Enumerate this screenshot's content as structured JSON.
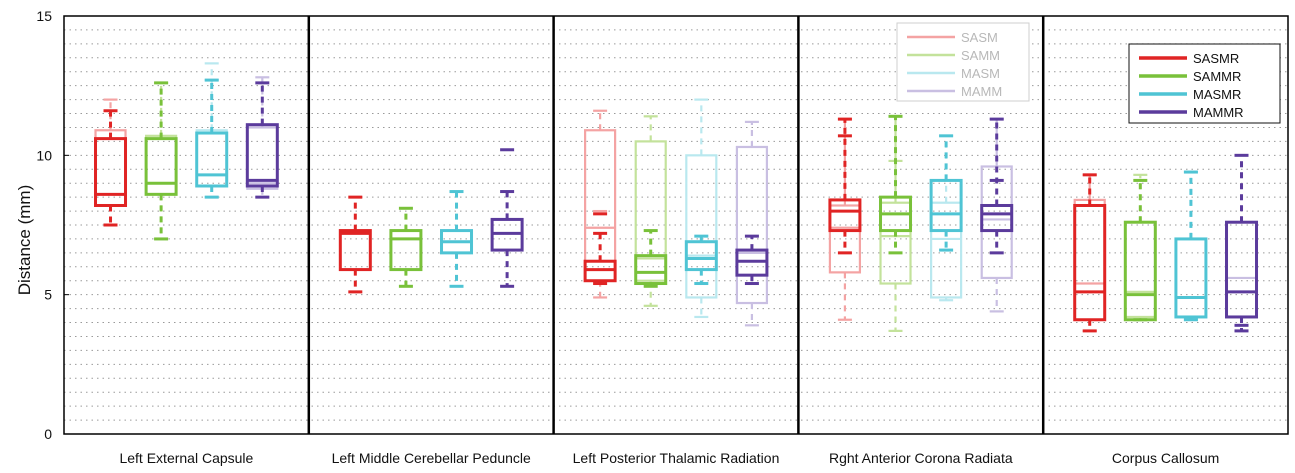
{
  "chart_data": {
    "type": "box",
    "ylabel": "Distance (mm)",
    "xlabel": "",
    "ylim": [
      0,
      15
    ],
    "yticks": [
      0,
      5,
      10,
      15
    ],
    "grid": true,
    "categories": [
      "Left External Capsule",
      "Left Middle Cerebellar Peduncle",
      "Left Posterior Thalamic Radiation",
      "Rght Anterior Corona Radiata",
      "Corpus Callosum"
    ],
    "series": [
      {
        "name": "SASM",
        "color": "#f4a3a3",
        "faded": true
      },
      {
        "name": "SAMM",
        "color": "#c3e29b",
        "faded": true
      },
      {
        "name": "MASM",
        "color": "#b9e8ef",
        "faded": true
      },
      {
        "name": "MAMM",
        "color": "#c9bfe2",
        "faded": true
      },
      {
        "name": "SASMR",
        "color": "#e02424",
        "faded": false
      },
      {
        "name": "SAMMR",
        "color": "#79c13a",
        "faded": false
      },
      {
        "name": "MASMR",
        "color": "#4fc4d4",
        "faded": false
      },
      {
        "name": "MAMMR",
        "color": "#5b3b9c",
        "faded": false
      }
    ],
    "legends": [
      {
        "position": "top-center-right",
        "entries": [
          "SASM",
          "SAMM",
          "MASM",
          "MAMM"
        ]
      },
      {
        "position": "top-right",
        "entries": [
          "SASMR",
          "SAMMR",
          "MASMR",
          "MAMMR"
        ]
      }
    ],
    "boxes": [
      {
        "group": 0,
        "series": "SASM",
        "min": 7.5,
        "q1": 8.2,
        "median": 8.6,
        "q3": 10.9,
        "max": 12.0,
        "outliers": [
          11.6
        ]
      },
      {
        "group": 0,
        "series": "SAMM",
        "min": 7.0,
        "q1": 8.6,
        "median": 9.0,
        "q3": 10.7,
        "max": 12.6,
        "outliers": []
      },
      {
        "group": 0,
        "series": "MASM",
        "min": 8.5,
        "q1": 8.9,
        "median": 9.3,
        "q3": 10.9,
        "max": 13.3,
        "outliers": [
          12.7
        ]
      },
      {
        "group": 0,
        "series": "MAMM",
        "min": 8.5,
        "q1": 8.8,
        "median": 9.0,
        "q3": 11.0,
        "max": 12.8,
        "outliers": []
      },
      {
        "group": 0,
        "series": "SASMR",
        "min": 7.5,
        "q1": 8.2,
        "median": 8.6,
        "q3": 10.6,
        "max": 11.6,
        "outliers": []
      },
      {
        "group": 0,
        "series": "SAMMR",
        "min": 7.0,
        "q1": 8.6,
        "median": 9.0,
        "q3": 10.6,
        "max": 12.6,
        "outliers": []
      },
      {
        "group": 0,
        "series": "MASMR",
        "min": 8.5,
        "q1": 8.9,
        "median": 9.3,
        "q3": 10.8,
        "max": 12.7,
        "outliers": []
      },
      {
        "group": 0,
        "series": "MAMMR",
        "min": 8.5,
        "q1": 8.9,
        "median": 9.1,
        "q3": 11.1,
        "max": 12.6,
        "outliers": []
      },
      {
        "group": 1,
        "series": "SASMR",
        "min": 5.1,
        "q1": 5.9,
        "median": 7.2,
        "q3": 7.3,
        "max": 8.5,
        "outliers": []
      },
      {
        "group": 1,
        "series": "SAMMR",
        "min": 5.3,
        "q1": 5.9,
        "median": 7.0,
        "q3": 7.3,
        "max": 8.1,
        "outliers": []
      },
      {
        "group": 1,
        "series": "MASMR",
        "min": 5.3,
        "q1": 6.5,
        "median": 6.9,
        "q3": 7.3,
        "max": 8.7,
        "outliers": []
      },
      {
        "group": 1,
        "series": "MAMMR",
        "min": 5.3,
        "q1": 6.6,
        "median": 7.2,
        "q3": 7.7,
        "max": 8.7,
        "outliers": [
          10.2
        ]
      },
      {
        "group": 2,
        "series": "SASM",
        "min": 4.9,
        "q1": 5.5,
        "median": 7.4,
        "q3": 10.9,
        "max": 11.6,
        "outliers": [
          8.0
        ]
      },
      {
        "group": 2,
        "series": "SAMM",
        "min": 4.6,
        "q1": 5.5,
        "median": 6.3,
        "q3": 10.5,
        "max": 11.4,
        "outliers": []
      },
      {
        "group": 2,
        "series": "MASM",
        "min": 4.2,
        "q1": 4.9,
        "median": 6.4,
        "q3": 10.0,
        "max": 12.0,
        "outliers": []
      },
      {
        "group": 2,
        "series": "MAMM",
        "min": 3.9,
        "q1": 4.7,
        "median": 6.5,
        "q3": 10.3,
        "max": 11.2,
        "outliers": []
      },
      {
        "group": 2,
        "series": "SASMR",
        "min": 5.4,
        "q1": 5.5,
        "median": 5.9,
        "q3": 6.2,
        "max": 7.2,
        "outliers": [
          7.9
        ]
      },
      {
        "group": 2,
        "series": "SAMMR",
        "min": 5.3,
        "q1": 5.4,
        "median": 5.8,
        "q3": 6.4,
        "max": 7.3,
        "outliers": []
      },
      {
        "group": 2,
        "series": "MASMR",
        "min": 5.4,
        "q1": 5.9,
        "median": 6.3,
        "q3": 6.9,
        "max": 7.1,
        "outliers": []
      },
      {
        "group": 2,
        "series": "MAMMR",
        "min": 5.4,
        "q1": 5.7,
        "median": 6.2,
        "q3": 6.6,
        "max": 7.1,
        "outliers": []
      },
      {
        "group": 3,
        "series": "SASM",
        "min": 4.1,
        "q1": 5.8,
        "median": 7.4,
        "q3": 8.2,
        "max": 11.3,
        "outliers": []
      },
      {
        "group": 3,
        "series": "SAMM",
        "min": 3.7,
        "q1": 5.4,
        "median": 7.1,
        "q3": 8.3,
        "max": 11.4,
        "outliers": [
          9.8
        ]
      },
      {
        "group": 3,
        "series": "MASM",
        "min": 4.8,
        "q1": 4.9,
        "median": 7.0,
        "q3": 8.3,
        "max": 10.7,
        "outliers": []
      },
      {
        "group": 3,
        "series": "MAMM",
        "min": 4.4,
        "q1": 5.6,
        "median": 7.7,
        "q3": 9.6,
        "max": 11.3,
        "outliers": []
      },
      {
        "group": 3,
        "series": "SASMR",
        "min": 6.5,
        "q1": 7.3,
        "median": 8.0,
        "q3": 8.4,
        "max": 11.3,
        "outliers": [
          10.7
        ]
      },
      {
        "group": 3,
        "series": "SAMMR",
        "min": 6.5,
        "q1": 7.3,
        "median": 7.9,
        "q3": 8.5,
        "max": 11.4,
        "outliers": []
      },
      {
        "group": 3,
        "series": "MASMR",
        "min": 6.6,
        "q1": 7.3,
        "median": 7.9,
        "q3": 9.1,
        "max": 10.7,
        "outliers": []
      },
      {
        "group": 3,
        "series": "MAMMR",
        "min": 6.5,
        "q1": 7.3,
        "median": 7.9,
        "q3": 8.2,
        "max": 11.3,
        "outliers": [
          9.1
        ]
      },
      {
        "group": 4,
        "series": "SASM",
        "min": 3.7,
        "q1": 4.1,
        "median": 5.4,
        "q3": 8.4,
        "max": 9.3,
        "outliers": []
      },
      {
        "group": 4,
        "series": "SAMM",
        "min": 4.1,
        "q1": 4.2,
        "median": 5.1,
        "q3": 7.6,
        "max": 9.3,
        "outliers": []
      },
      {
        "group": 4,
        "series": "MASM",
        "min": 4.1,
        "q1": 4.2,
        "median": 4.9,
        "q3": 7.0,
        "max": 9.4,
        "outliers": []
      },
      {
        "group": 4,
        "series": "MAMM",
        "min": 3.7,
        "q1": 4.2,
        "median": 5.6,
        "q3": 7.6,
        "max": 10.0,
        "outliers": []
      },
      {
        "group": 4,
        "series": "SASMR",
        "min": 3.7,
        "q1": 4.1,
        "median": 5.1,
        "q3": 8.2,
        "max": 9.3,
        "outliers": []
      },
      {
        "group": 4,
        "series": "SAMMR",
        "min": 4.1,
        "q1": 4.1,
        "median": 5.0,
        "q3": 7.6,
        "max": 9.1,
        "outliers": []
      },
      {
        "group": 4,
        "series": "MASMR",
        "min": 4.1,
        "q1": 4.2,
        "median": 4.9,
        "q3": 7.0,
        "max": 9.4,
        "outliers": []
      },
      {
        "group": 4,
        "series": "MAMMR",
        "min": 3.7,
        "q1": 4.2,
        "median": 5.1,
        "q3": 7.6,
        "max": 10.0,
        "outliers": [
          3.9
        ]
      }
    ]
  }
}
